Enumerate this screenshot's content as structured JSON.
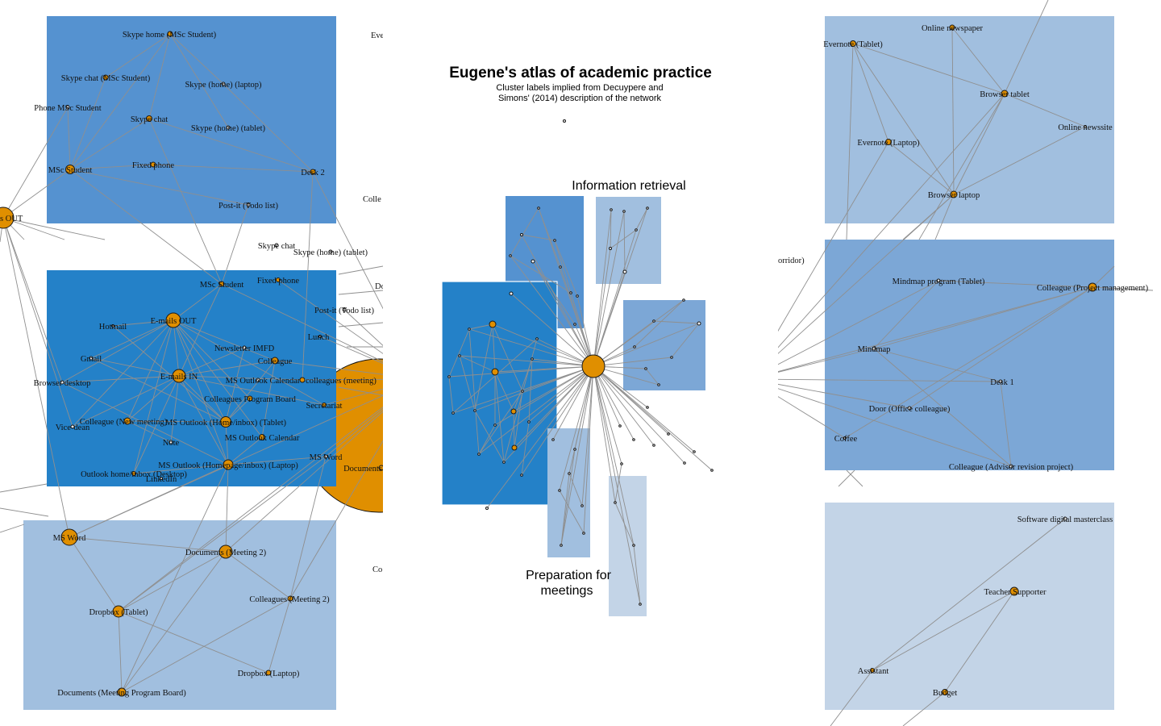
{
  "title": "Eugene's atlas of academic practice",
  "subtitle_lines": [
    "Cluster labels implied from Decuypere and",
    "Simons' (2014) description of the network"
  ],
  "cluster_labels": {
    "information_retrieval": "Information retrieval",
    "preparation_line1": "Preparation for",
    "preparation_line2": "meetings"
  },
  "colors": {
    "cluster_dark": "#2481C8",
    "cluster_mid": "#5592D0",
    "cluster_mid2": "#7CA7D6",
    "cluster_light": "#A1BFDF",
    "cluster_lighter": "#C3D4E7",
    "node": "#E08F00",
    "edge": "#8f8f8f"
  },
  "panels": {
    "skype": {
      "nodes": [
        "Skype home (MSc Student)",
        "Skype chat (MSc Student)",
        "Skype (home) (laptop)",
        "Phone MSc Student",
        "Skype chat",
        "Skype (home) (tablet)",
        "MSc Student",
        "Fixed phone",
        "Desk 2",
        "Post-it (Todo list)"
      ]
    },
    "email": {
      "nodes": [
        "MSc Student",
        "Fixed phone",
        "E-mails OUT",
        "Hotmail",
        "Newsletter IMFD",
        "Gmail",
        "Colleague",
        "E-mails IN",
        "MS Outlook Calendar",
        "colleagues (meeting)",
        "Browser desktop",
        "Colleagues Program Board",
        "Secretariat",
        "Vice-dean",
        "Colleague (New meeting)",
        "MS Outlook (Home/inbox) (Tablet)",
        "Note",
        "MS Outlook Calendar",
        "MS Word",
        "Outlook home/inbox (Desktop)",
        "LinkedIn",
        "MS Outlook (Homepage/inbox) (Laptop)"
      ]
    },
    "outside_mid": {
      "nodes": [
        "Skype chat",
        "Skype (home) (tablet)",
        "Post-it (Todo list)",
        "Lunch",
        "Documents"
      ],
      "clipped": [
        "Eve",
        "Colle",
        "Do",
        "Co",
        "s OUT"
      ]
    },
    "meetings": {
      "nodes": [
        "MS Word",
        "Documents (Meeting 2)",
        "Colleagues (Meeting 2)",
        "Dropbox (Tablet)",
        "Dropbox (Laptop)",
        "Documents (Meeting Program Board)"
      ]
    },
    "retrieval": {
      "nodes": [
        "Online newspaper",
        "Evernote (Tablet)",
        "Browser tablet",
        "Online newssite",
        "Evernote (Laptop)",
        "Browser laptop"
      ]
    },
    "office": {
      "nodes": [
        "Mindmap program (Tablet)",
        "Colleague (Project management)",
        "Mindmap",
        "Desk 1",
        "Door (Office colleague)",
        "Coffee",
        "Colleague (Advisor revision project)"
      ],
      "clipped": [
        "orridor)"
      ]
    },
    "teaching": {
      "nodes": [
        "Software digital masterclass",
        "Teacher Supporter",
        "Assistant",
        "Budget"
      ]
    }
  }
}
